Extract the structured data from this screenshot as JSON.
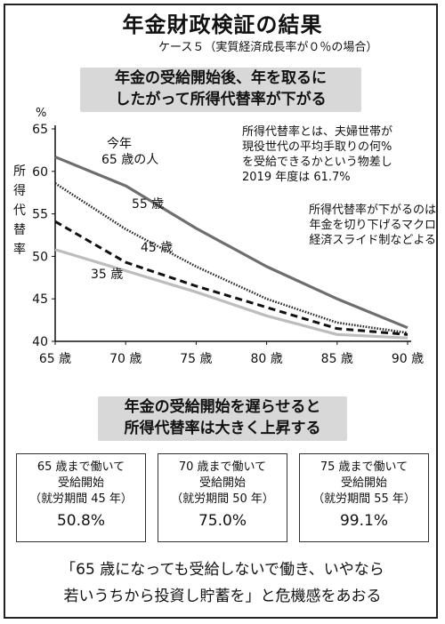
{
  "header": {
    "title": "年金財政検証の結果",
    "subtitle": "ケース５（実質経済成長率が０％の場合）",
    "banner": [
      "年金の受給開始後、年を取るに",
      "したがって所得代替率が下がる"
    ]
  },
  "notes": {
    "definition": [
      "所得代替率とは、夫婦世帯が",
      "現役世代の平均手取りの何%",
      "を受給できるかという物差し",
      "2019 年度は 61.7%"
    ],
    "reason": [
      "所得代替率が下がるのは",
      "年金を切り下げるマクロ",
      "経済スライド制などよる"
    ]
  },
  "chart_data": {
    "type": "line",
    "ylabel": "所得代替率",
    "yunit": "%",
    "ylim": [
      40,
      65
    ],
    "yticks": [
      40,
      45,
      50,
      55,
      60,
      65
    ],
    "x": [
      65,
      70,
      75,
      80,
      85,
      90
    ],
    "xticklabels": [
      "65 歳",
      "70 歳",
      "75 歳",
      "80 歳",
      "85 歳",
      "90 歳"
    ],
    "grid": false,
    "series": [
      {
        "name": "今年 65 歳の人",
        "label_lines": [
          "今年",
          "65 歳の人"
        ],
        "x": [
          65,
          70,
          75,
          80,
          85,
          90
        ],
        "y": [
          61.7,
          58.3,
          53.3,
          48.8,
          45.0,
          41.6
        ],
        "color": "#6e6e6e",
        "style": "solid"
      },
      {
        "name": "55 歳",
        "x": [
          65,
          70,
          75,
          80,
          85,
          90
        ],
        "y": [
          58.6,
          53.2,
          48.8,
          45.0,
          42.2,
          41.0
        ],
        "color": "#2b2b2b",
        "style": "dotted"
      },
      {
        "name": "45 歳",
        "x": [
          65,
          70,
          75,
          80,
          85,
          90
        ],
        "y": [
          54.1,
          49.3,
          46.5,
          44.0,
          41.5,
          40.8
        ],
        "color": "#111111",
        "style": "dashed"
      },
      {
        "name": "35 歳",
        "x": [
          65,
          70,
          75,
          80,
          85,
          90
        ],
        "y": [
          50.8,
          48.3,
          45.8,
          43.0,
          40.8,
          40.4
        ],
        "color": "#bdbdbd",
        "style": "solid"
      }
    ]
  },
  "middle": {
    "banner": [
      "年金の受給開始を遅らせると",
      "所得代替率は大きく上昇する"
    ]
  },
  "cards": [
    {
      "l1": "65 歳まで働いて",
      "l2": "受給開始",
      "l3": "（就労期間 45 年）",
      "value": "50.8%"
    },
    {
      "l1": "70 歳まで働いて",
      "l2": "受給開始",
      "l3": "（就労期間 50 年）",
      "value": "75.0%"
    },
    {
      "l1": "75 歳まで働いて",
      "l2": "受給開始",
      "l3": "（就労期間 55 年）",
      "value": "99.1%"
    }
  ],
  "footer": {
    "quote": [
      "「65 歳になっても受給しないで働き、いやなら",
      "若いうちから投資し貯蓄を」と危機感をあおる"
    ]
  }
}
